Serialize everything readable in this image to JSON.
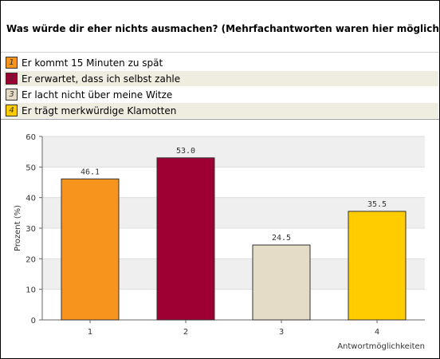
{
  "question": "Was würde dir eher nichts ausmachen? (Mehrfachantworten waren hier möglich)",
  "legend": [
    {
      "num": "1",
      "label": "Er kommt 15 Minuten zu spät",
      "color": "#f7941d"
    },
    {
      "num": "2",
      "label": "Er erwartet, dass ich selbst zahle",
      "color": "#9e0033"
    },
    {
      "num": "3",
      "label": "Er lacht nicht über meine Witze",
      "color": "#e4dcc6"
    },
    {
      "num": "4",
      "label": "Er trägt merkwürdige Klamotten",
      "color": "#ffcc00"
    }
  ],
  "chart_data": {
    "type": "bar",
    "categories": [
      "1",
      "2",
      "3",
      "4"
    ],
    "values": [
      46.1,
      53.0,
      24.5,
      35.5
    ],
    "value_labels": [
      "46.1",
      "53.0",
      "24.5",
      "35.5"
    ],
    "colors": [
      "#f7941d",
      "#9e0033",
      "#e4dcc6",
      "#ffcc00"
    ],
    "ylabel": "Prozent (%)",
    "xlabel": "Antwortmöglichkeiten",
    "ylim": [
      0,
      60
    ],
    "yticks": [
      "0",
      "10",
      "20",
      "30",
      "40",
      "50",
      "60"
    ],
    "grid": true,
    "grid_band_color": "#efefef"
  }
}
